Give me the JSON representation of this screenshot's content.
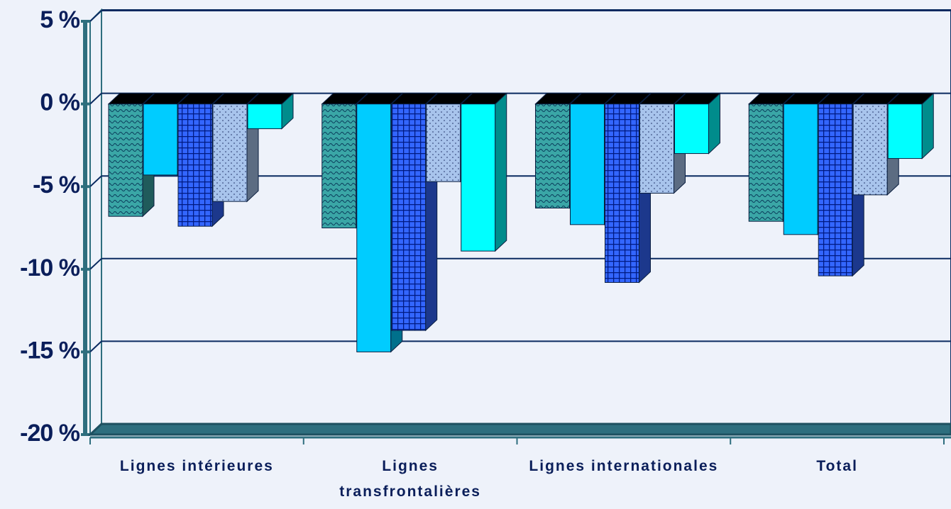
{
  "chart_data": {
    "type": "bar3d",
    "categories": [
      "Lignes intérieures",
      "Lignes transfrontalières",
      "Lignes internationales",
      "Total"
    ],
    "series": [
      {
        "color": "#3aa6a6",
        "values": [
          -6.8,
          -7.5,
          -6.3,
          -7.1
        ]
      },
      {
        "color": "#00ccff",
        "values": [
          -4.3,
          -15.0,
          -7.3,
          -7.9
        ]
      },
      {
        "color": "#3366ff",
        "values": [
          -7.4,
          -13.7,
          -10.8,
          -10.4
        ]
      },
      {
        "color": "#a8c4ec",
        "values": [
          -5.9,
          -4.7,
          -5.4,
          -5.5
        ]
      },
      {
        "color": "#00ffff",
        "values": [
          -1.5,
          -8.9,
          -3.0,
          -3.3
        ]
      }
    ],
    "ylim": [
      -20,
      5
    ],
    "yticks": [
      {
        "value": -20,
        "label": "-20 %"
      },
      {
        "value": -15,
        "label": "-15 %"
      },
      {
        "value": -10,
        "label": "-10 %"
      },
      {
        "value": -5,
        "label": "-5 %"
      },
      {
        "value": 0,
        "label": "0 %"
      },
      {
        "value": 5,
        "label": "5 %"
      }
    ],
    "grid": true
  }
}
